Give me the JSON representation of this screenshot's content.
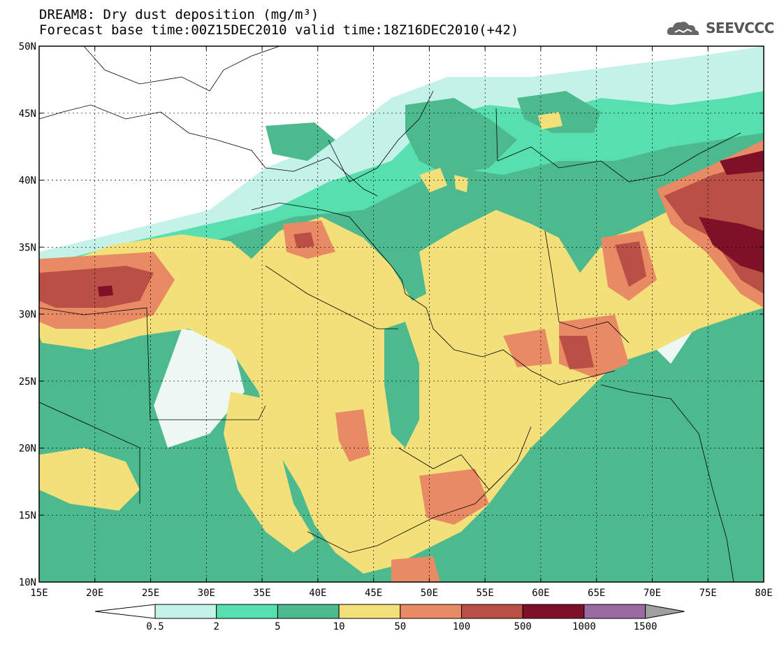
{
  "header": {
    "title": "DREAM8: Dry dust deposition (mg/m³)",
    "subtitle": "Forecast base time:00Z15DEC2010 valid time:18Z16DEC2010(+42)"
  },
  "logo": {
    "text": "SEEVCCC"
  },
  "map": {
    "lon_range": [
      15,
      80
    ],
    "lat_range": [
      10,
      50
    ],
    "lon_ticks": [
      "15E",
      "20E",
      "25E",
      "30E",
      "35E",
      "40E",
      "45E",
      "50E",
      "55E",
      "60E",
      "65E",
      "70E",
      "75E",
      "80E"
    ],
    "lat_ticks": [
      "50N",
      "45N",
      "40N",
      "35N",
      "30N",
      "25N",
      "20N",
      "15N",
      "10N"
    ],
    "grid": true
  },
  "legend": {
    "labels": [
      "0.5",
      "2",
      "5",
      "10",
      "50",
      "100",
      "500",
      "1000",
      "1500"
    ],
    "colors": [
      "#c5f2e8",
      "#58dfb0",
      "#4cb98f",
      "#f4e07a",
      "#e88a64",
      "#b94f45",
      "#7e1028",
      "#9a6aa3"
    ],
    "below_color": "#ffffff",
    "above_color": "#a0a0a0"
  }
}
